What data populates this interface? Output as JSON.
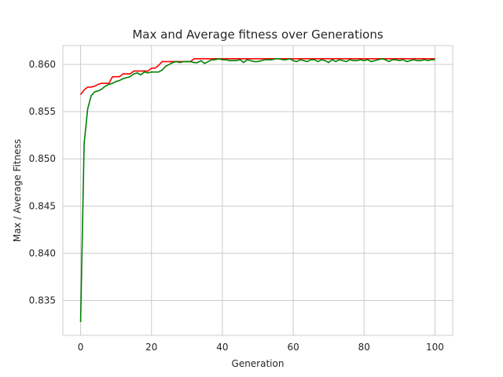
{
  "chart_data": {
    "type": "line",
    "title": "Max and Average fitness over Generations",
    "xlabel": "Generation",
    "ylabel": "Max / Average Fitness",
    "xlim": [
      -5,
      105
    ],
    "ylim": [
      0.8313,
      0.862
    ],
    "xticks": [
      0,
      20,
      40,
      60,
      80,
      100
    ],
    "yticks": [
      0.835,
      0.84,
      0.845,
      0.85,
      0.855,
      0.86
    ],
    "ytick_labels": [
      "0.835",
      "0.840",
      "0.845",
      "0.850",
      "0.855",
      "0.860"
    ],
    "grid": true,
    "legend": "none",
    "series": [
      {
        "color": "#ff0000",
        "x": [
          0,
          1,
          2,
          3,
          4,
          5,
          6,
          7,
          8,
          9,
          10,
          11,
          12,
          13,
          14,
          15,
          16,
          17,
          18,
          19,
          20,
          21,
          22,
          23,
          24,
          25,
          26,
          27,
          28,
          29,
          30,
          31,
          32,
          33,
          34,
          35,
          36,
          37,
          38,
          39,
          40,
          41,
          42,
          43,
          44,
          45,
          46,
          47,
          48,
          49,
          50,
          51,
          52,
          53,
          54,
          55,
          56,
          57,
          58,
          59,
          60,
          61,
          62,
          63,
          64,
          65,
          66,
          67,
          68,
          69,
          70,
          71,
          72,
          73,
          74,
          75,
          76,
          77,
          78,
          79,
          80,
          81,
          82,
          83,
          84,
          85,
          86,
          87,
          88,
          89,
          90,
          91,
          92,
          93,
          94,
          95,
          96,
          97,
          98,
          99,
          100
        ],
        "y": [
          0.8568,
          0.8573,
          0.8576,
          0.8576,
          0.8577,
          0.8579,
          0.858,
          0.858,
          0.858,
          0.8587,
          0.8587,
          0.8587,
          0.859,
          0.859,
          0.859,
          0.8593,
          0.8593,
          0.8593,
          0.8593,
          0.8593,
          0.8596,
          0.8596,
          0.8599,
          0.8603,
          0.8603,
          0.8603,
          0.8603,
          0.8603,
          0.8603,
          0.8603,
          0.8603,
          0.8603,
          0.8606,
          0.8606,
          0.8606,
          0.8606,
          0.8606,
          0.8606,
          0.8606,
          0.8606,
          0.8606,
          0.8606,
          0.8606,
          0.8606,
          0.8606,
          0.8606,
          0.8606,
          0.8606,
          0.8606,
          0.8606,
          0.8606,
          0.8606,
          0.8606,
          0.8606,
          0.8606,
          0.8606,
          0.8606,
          0.8606,
          0.8606,
          0.8606,
          0.8606,
          0.8606,
          0.8606,
          0.8606,
          0.8606,
          0.8606,
          0.8606,
          0.8606,
          0.8606,
          0.8606,
          0.8606,
          0.8606,
          0.8606,
          0.8606,
          0.8606,
          0.8606,
          0.8606,
          0.8606,
          0.8606,
          0.8606,
          0.8606,
          0.8606,
          0.8606,
          0.8606,
          0.8606,
          0.8606,
          0.8606,
          0.8606,
          0.8606,
          0.8606,
          0.8606,
          0.8606,
          0.8606,
          0.8606,
          0.8606,
          0.8606,
          0.8606,
          0.8606,
          0.8606,
          0.8606,
          0.8606
        ]
      },
      {
        "color": "#008000",
        "x": [
          0,
          1,
          2,
          3,
          4,
          5,
          6,
          7,
          8,
          9,
          10,
          11,
          12,
          13,
          14,
          15,
          16,
          17,
          18,
          19,
          20,
          21,
          22,
          23,
          24,
          25,
          26,
          27,
          28,
          29,
          30,
          31,
          32,
          33,
          34,
          35,
          36,
          37,
          38,
          39,
          40,
          41,
          42,
          43,
          44,
          45,
          46,
          47,
          48,
          49,
          50,
          51,
          52,
          53,
          54,
          55,
          56,
          57,
          58,
          59,
          60,
          61,
          62,
          63,
          64,
          65,
          66,
          67,
          68,
          69,
          70,
          71,
          72,
          73,
          74,
          75,
          76,
          77,
          78,
          79,
          80,
          81,
          82,
          83,
          84,
          85,
          86,
          87,
          88,
          89,
          90,
          91,
          92,
          93,
          94,
          95,
          96,
          97,
          98,
          99,
          100
        ],
        "y": [
          0.8327,
          0.8516,
          0.8553,
          0.8567,
          0.8571,
          0.8572,
          0.8574,
          0.8577,
          0.8579,
          0.858,
          0.8582,
          0.8583,
          0.8585,
          0.8586,
          0.8587,
          0.859,
          0.8591,
          0.8589,
          0.8592,
          0.8591,
          0.8592,
          0.8592,
          0.8592,
          0.8594,
          0.8598,
          0.86,
          0.8602,
          0.8603,
          0.8602,
          0.8603,
          0.8603,
          0.8603,
          0.8602,
          0.8602,
          0.8604,
          0.8601,
          0.8603,
          0.8605,
          0.8605,
          0.8606,
          0.8605,
          0.8605,
          0.8604,
          0.8604,
          0.8604,
          0.8605,
          0.8602,
          0.8605,
          0.8604,
          0.8603,
          0.8603,
          0.8604,
          0.8605,
          0.8605,
          0.8605,
          0.8606,
          0.8606,
          0.8605,
          0.8605,
          0.8606,
          0.8604,
          0.8603,
          0.8605,
          0.8604,
          0.8603,
          0.8605,
          0.8605,
          0.8603,
          0.8605,
          0.8604,
          0.8602,
          0.8605,
          0.8603,
          0.8605,
          0.8604,
          0.8603,
          0.8605,
          0.8604,
          0.8604,
          0.8605,
          0.8604,
          0.8605,
          0.8603,
          0.8604,
          0.8605,
          0.8606,
          0.8605,
          0.8603,
          0.8605,
          0.8605,
          0.8604,
          0.8605,
          0.8603,
          0.8604,
          0.8605,
          0.8604,
          0.8604,
          0.8605,
          0.8604,
          0.8605,
          0.8605
        ]
      }
    ]
  }
}
